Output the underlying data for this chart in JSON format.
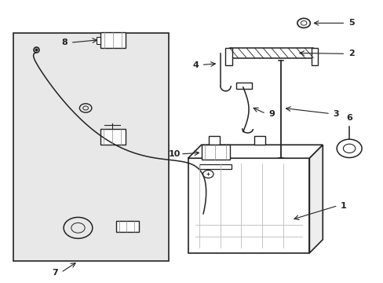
{
  "background_color": "#ffffff",
  "box_bg": "#e8e8e8",
  "line_color": "#222222",
  "figsize": [
    4.89,
    3.6
  ],
  "dpi": 100
}
